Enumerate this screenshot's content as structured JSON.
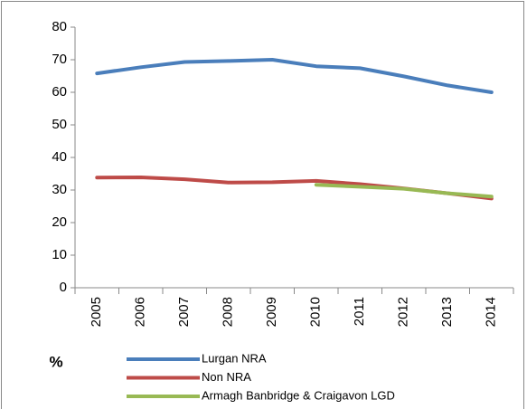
{
  "chart_data": {
    "type": "line",
    "ylabel": "%",
    "categories": [
      "2005",
      "2006",
      "2007",
      "2008",
      "2009",
      "2010",
      "2011",
      "2012",
      "2013",
      "2014"
    ],
    "series": [
      {
        "name": "Lurgan NRA",
        "color": "#4a7ebb",
        "values": [
          65.8,
          67.7,
          69.3,
          69.6,
          70.0,
          68.0,
          67.4,
          64.9,
          62.1,
          60.0
        ]
      },
      {
        "name": "Non NRA",
        "color": "#be4b48",
        "values": [
          33.8,
          33.9,
          33.3,
          32.3,
          32.4,
          32.8,
          31.8,
          30.5,
          29.0,
          27.4
        ]
      },
      {
        "name": "Armagh Banbridge & Craigavon LGD",
        "color": "#98b954",
        "values": [
          null,
          null,
          null,
          null,
          null,
          31.6,
          31.0,
          30.4,
          29.0,
          28.0
        ]
      }
    ],
    "ylim": [
      0,
      80
    ],
    "yticks": [
      0,
      10,
      20,
      30,
      40,
      50,
      60,
      70,
      80
    ],
    "grid": false
  }
}
